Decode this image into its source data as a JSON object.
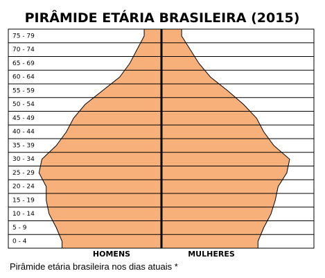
{
  "chart_data": {
    "type": "pyramid",
    "title": "PIRÂMIDE ETÁRIA BRASILEIRA (2015)",
    "caption": "Pirâmide etária brasileira nos dias atuais *",
    "categories": [
      "0 - 4",
      "5 - 9",
      "10 - 14",
      "15 - 19",
      "20 - 24",
      "25 - 29",
      "30 - 34",
      "35 - 39",
      "40 - 44",
      "45 - 49",
      "50 - 54",
      "55 - 59",
      "60 - 64",
      "65 - 69",
      "70 - 74",
      "75 - 79"
    ],
    "series": [
      {
        "name": "HOMENS",
        "color": "#f7b07a",
        "values": [
          6.9,
          7.3,
          7.8,
          8.0,
          8.0,
          8.5,
          8.3,
          7.3,
          6.6,
          6.1,
          5.3,
          4.1,
          2.9,
          2.2,
          1.7,
          1.2
        ]
      },
      {
        "name": "MULHERES",
        "color": "#f7b07a",
        "values": [
          6.7,
          7.1,
          7.6,
          7.9,
          8.1,
          8.7,
          8.9,
          7.8,
          7.1,
          6.6,
          5.7,
          4.6,
          3.4,
          2.6,
          2.0,
          1.4
        ]
      }
    ]
  }
}
